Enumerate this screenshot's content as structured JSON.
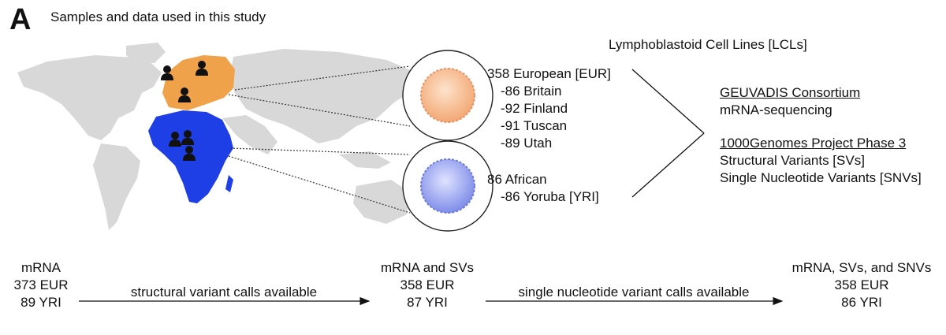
{
  "panel": {
    "letter": "A",
    "title": "Samples and data used in this study"
  },
  "cells": {
    "title": "Lymphoblastoid Cell Lines [LCLs]"
  },
  "populations": {
    "european": {
      "header": "358 European [EUR]",
      "subgroups": [
        "-86 Britain",
        "-92 Finland",
        "-91 Tuscan",
        "-89 Utah"
      ]
    },
    "african": {
      "header": "86 African",
      "subgroups": [
        "-86 Yoruba [YRI]"
      ]
    }
  },
  "sources": {
    "geuvadis": {
      "name": "GEUVADIS Consortium",
      "detail": "mRNA-sequencing"
    },
    "thousand_genomes": {
      "name": "1000Genomes Project Phase 3",
      "details": [
        "Structural Variants [SVs]",
        "Single Nucleotide Variants [SNVs]"
      ]
    }
  },
  "flow": {
    "steps": [
      {
        "lines": [
          "mRNA",
          "373 EUR",
          "89 YRI"
        ]
      },
      {
        "lines": [
          "mRNA and SVs",
          "358 EUR",
          "87 YRI"
        ]
      },
      {
        "lines": [
          "mRNA, SVs, and SNVs",
          "358 EUR",
          "86 YRI"
        ]
      }
    ],
    "transitions": [
      "structural variant calls available",
      "single nucleotide variant calls available"
    ]
  },
  "colors": {
    "europe": "#f0a24a",
    "africa": "#1f3fe6",
    "land": "#d8d8d8",
    "cell_eur": "#f6b98a",
    "cell_afr": "#8f9cf0"
  },
  "icons": {
    "person": "person-icon",
    "cell": "lymphoblastoid-cell-icon"
  }
}
